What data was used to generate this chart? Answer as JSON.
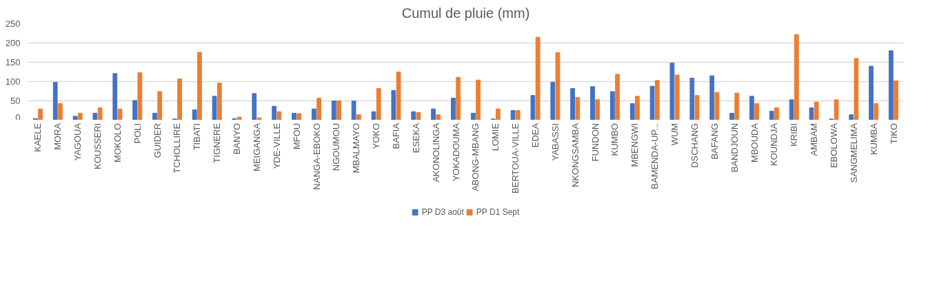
{
  "chart_data": {
    "type": "bar",
    "title": "Cumul de pluie (mm)",
    "categories": [
      "KAELE",
      "MORA",
      "YAGOUA",
      "KOUSSERI",
      "MOKOLO",
      "POLI",
      "GUIDER",
      "TCHOLLIRE",
      "TIBATI",
      "TIGNERE",
      "BANYO",
      "MEIGANGA",
      "YDE-VILLE",
      "MFOU",
      "NANGA-EBOKO",
      "NGOUMOU",
      "MBALMAYO",
      "YOKO",
      "BAFIA",
      "ESEKA",
      "AKONOLINGA",
      "YOKADOUMA",
      "ABONG-MBANG",
      "LOMIE",
      "BERTOUA-VILLE",
      "EDEA",
      "YABASSI",
      "NKONGSAMBA",
      "FUNDON",
      "KUMBO",
      "MBENGWI",
      "BAMENDA-UP...",
      "WUM",
      "DSCHANG",
      "BAFANG",
      "BANDJOUN",
      "MBOUDA",
      "KOUNDJA",
      "KRIBI",
      "AMBAM",
      "EBOLOWA",
      "SANGMELIMA",
      "KUMBA",
      "TIKO"
    ],
    "series": [
      {
        "name": "PP D3 août",
        "color": "#4472c4",
        "values": [
          4,
          98,
          10,
          18,
          121,
          51,
          18,
          3,
          27,
          62,
          4,
          69,
          36,
          18,
          29,
          50,
          50,
          22,
          77,
          22,
          29,
          57,
          18,
          3,
          25,
          64,
          98,
          82,
          87,
          74,
          43,
          88,
          148,
          109,
          115,
          18,
          62,
          23,
          53,
          32,
          3,
          14,
          140,
          180
        ]
      },
      {
        "name": "PP D1 Sept",
        "color": "#ed7d31",
        "values": [
          29,
          43,
          18,
          32,
          29,
          123,
          74,
          107,
          176,
          96,
          8,
          6,
          22,
          17,
          57,
          50,
          14,
          82,
          125,
          20,
          14,
          111,
          104,
          29,
          25,
          215,
          175,
          59,
          53,
          119,
          62,
          103,
          117,
          64,
          72,
          70,
          43,
          32,
          222,
          47,
          53,
          160,
          43,
          102
        ]
      }
    ],
    "ylim": [
      0,
      250
    ],
    "yticks": [
      0,
      50,
      100,
      150,
      200,
      250
    ],
    "grid": "y",
    "legend": "bottom"
  }
}
